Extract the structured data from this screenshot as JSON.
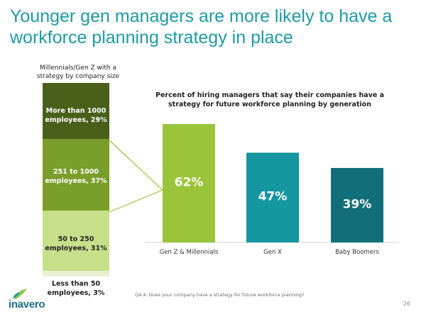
{
  "title": "Younger gen managers are more likely to have a workforce planning strategy in place",
  "stack": {
    "caption": "Millennials/Gen Z with a strategy by company size",
    "segments": [
      {
        "label": "More than 1000 employees, 29%",
        "value": 29,
        "color": "#4a5f1a",
        "text_color": "#ffffff"
      },
      {
        "label": "251 to 1000 employees, 37%",
        "value": 37,
        "color": "#7a9e2a",
        "text_color": "#ffffff"
      },
      {
        "label": "50 to 250 employees, 31%",
        "value": 31,
        "color": "#c8df8a",
        "text_color": "#222222"
      },
      {
        "label": "Less than 50 employees, 3%",
        "value": 3,
        "color": "#e8f0d0",
        "text_color": "#222222"
      }
    ]
  },
  "chart_data": {
    "type": "bar",
    "title": "Percent of hiring managers that say their companies have a strategy for future workforce planning by generation",
    "categories": [
      "Gen Z & Millennials",
      "Gen X",
      "Baby Boomers"
    ],
    "values": [
      62,
      47,
      39
    ],
    "value_labels": [
      "62%",
      "47%",
      "39%"
    ],
    "colors": [
      "#9ac53a",
      "#1596a0",
      "#126f7a"
    ],
    "ylim": [
      0,
      62
    ],
    "xlabel": "",
    "ylabel": "",
    "grid": false,
    "legend": "none"
  },
  "footnote": "Q4.4. Does your company have a strategy for future workforce planning?",
  "page_number": "26",
  "logo": {
    "name": "inavero",
    "text": "inavero",
    "accent": "#8cc63f",
    "color": "#1a6e8a"
  }
}
